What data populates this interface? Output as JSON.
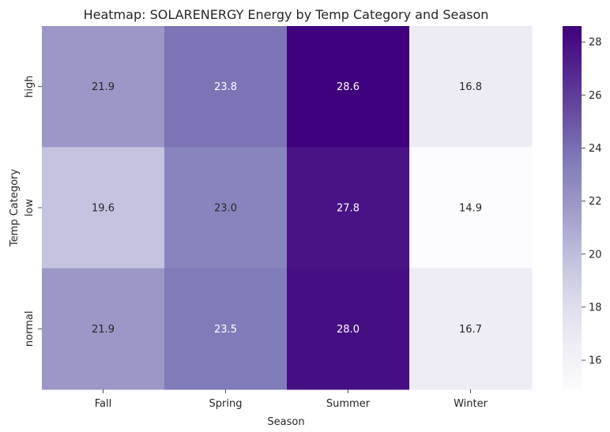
{
  "chart_data": {
    "type": "heatmap",
    "title": "Heatmap: SOLARENERGY Energy by Temp Category and Season",
    "xlabel": "Season",
    "ylabel": "Temp Category",
    "x": [
      "Fall",
      "Spring",
      "Summer",
      "Winter"
    ],
    "y": [
      "high",
      "low",
      "normal"
    ],
    "values": [
      [
        21.9,
        23.8,
        28.6,
        16.8
      ],
      [
        19.6,
        23.0,
        27.8,
        14.9
      ],
      [
        21.9,
        23.5,
        28.0,
        16.7
      ]
    ],
    "colorbar": {
      "ticks": [
        "16",
        "18",
        "20",
        "22",
        "24",
        "26",
        "28"
      ],
      "range": [
        14.9,
        28.6
      ],
      "colormap": "Purples"
    },
    "annotation_format": "one decimal",
    "colors": {
      "low": "#fcfbfd",
      "mid": "#9e9ac8",
      "high": "#3f007d"
    }
  }
}
